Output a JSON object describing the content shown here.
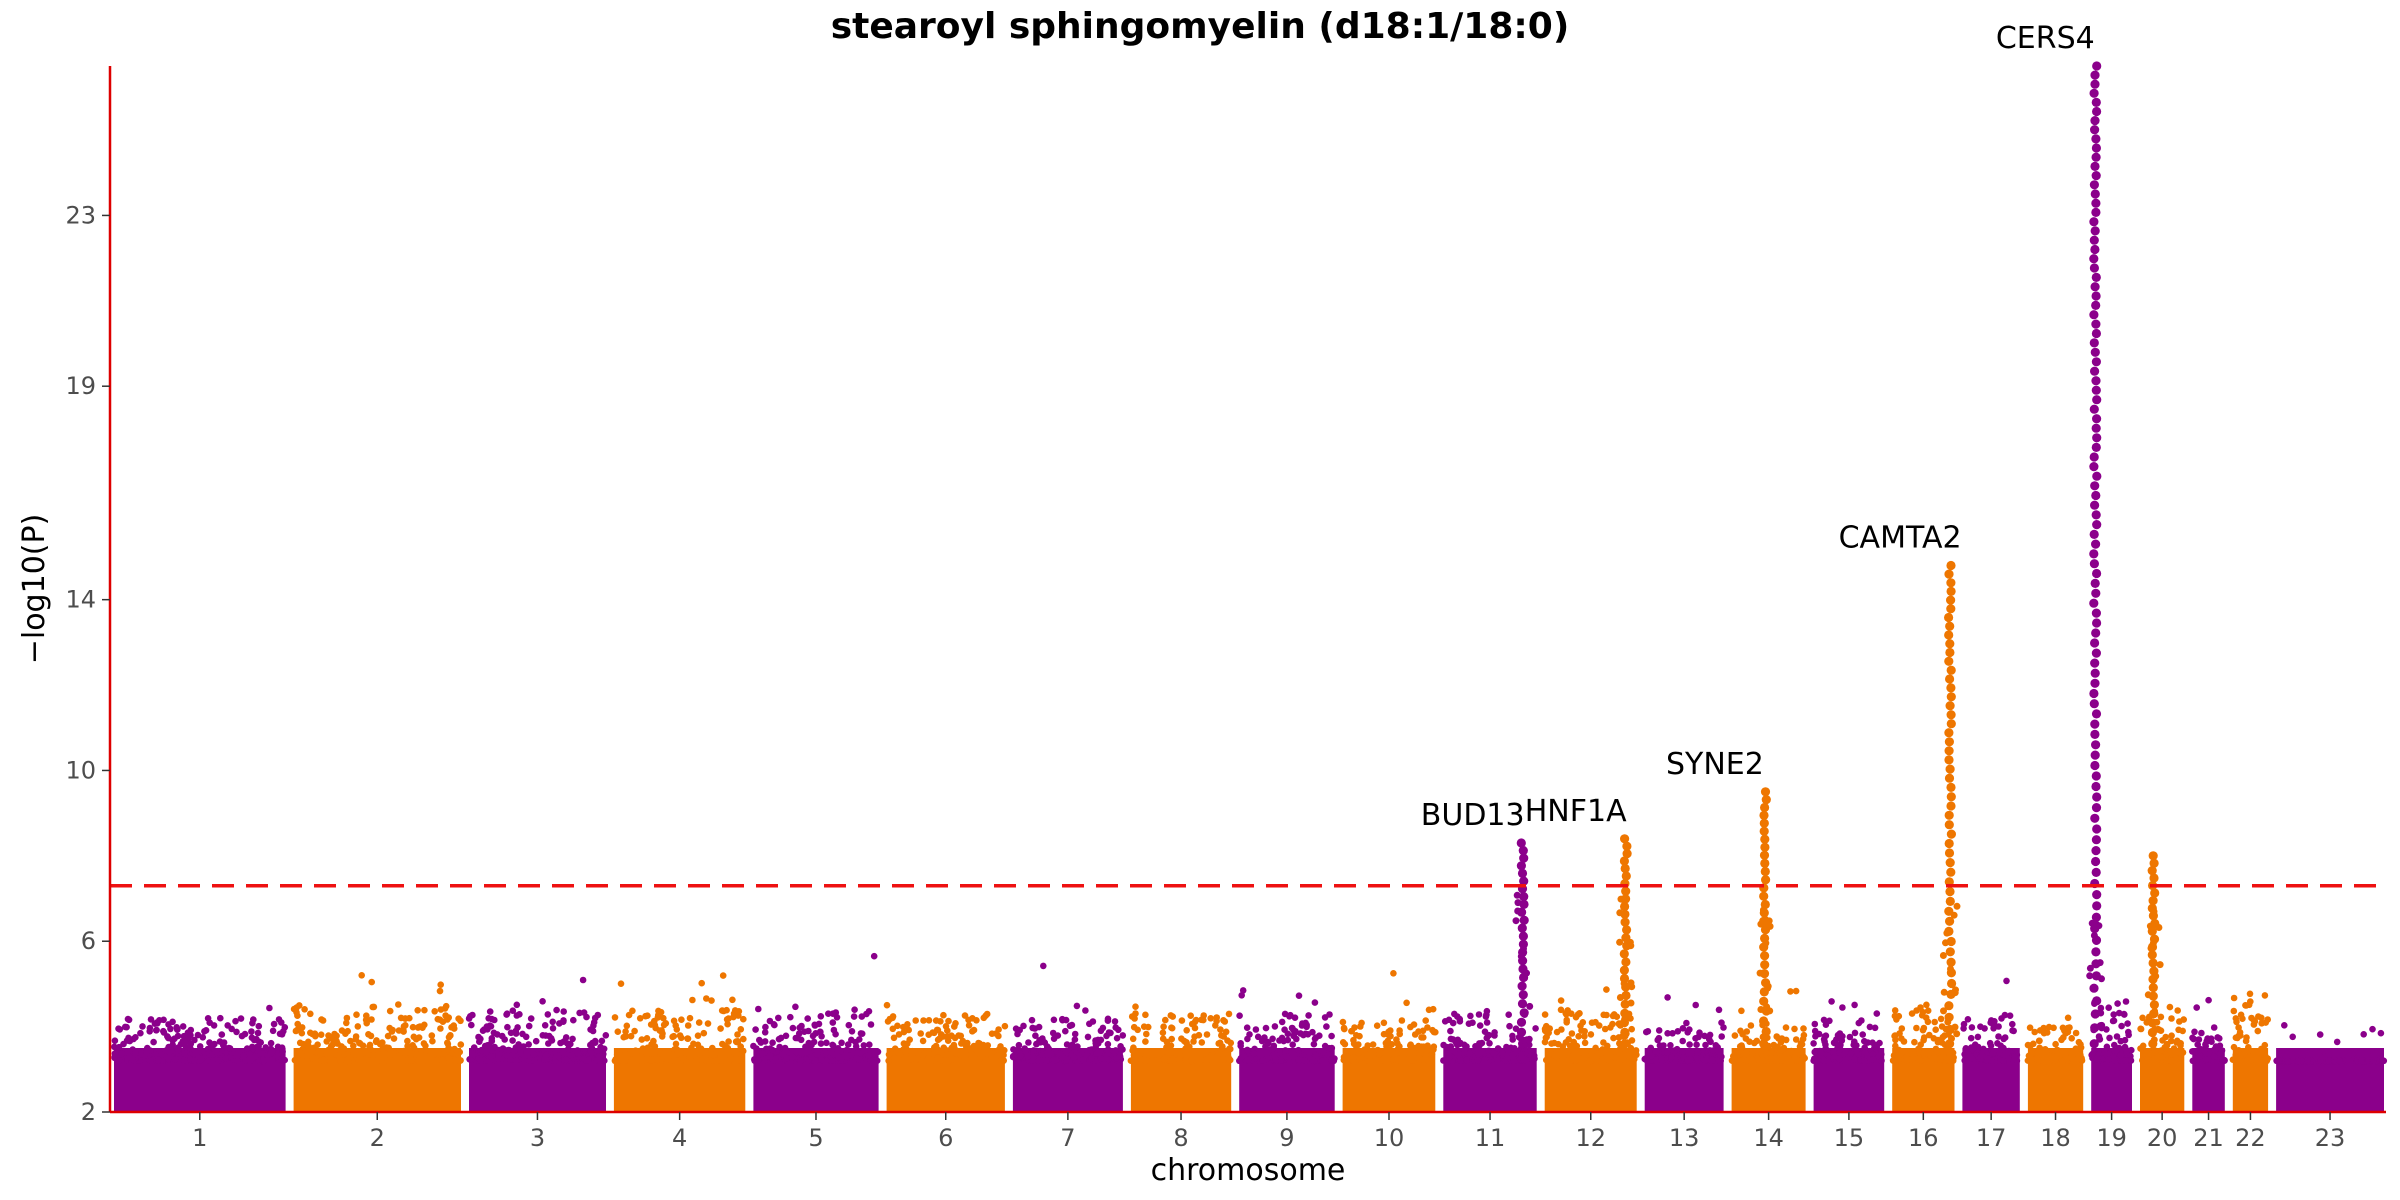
{
  "chart_data": {
    "type": "scatter",
    "subtype": "manhattan",
    "title": "stearoyl sphingomyelin (d18:1/18:0)",
    "xlabel": "chromosome",
    "ylabel": "−log10(P)",
    "ylim": [
      2,
      26.5
    ],
    "yticks": [
      "2",
      "6",
      "10",
      "14",
      "19",
      "23"
    ],
    "significance_threshold": 7.3,
    "colors": {
      "odd": "#8B008B",
      "even": "#EE7600",
      "axis": "#DD0000",
      "threshold": "#EE1111"
    },
    "chromosomes": [
      {
        "label": "1",
        "rel_len": 248,
        "baseline_max": 4.2
      },
      {
        "label": "2",
        "rel_len": 242,
        "baseline_max": 4.5
      },
      {
        "label": "3",
        "rel_len": 198,
        "baseline_max": 4.4
      },
      {
        "label": "4",
        "rel_len": 190,
        "baseline_max": 4.4
      },
      {
        "label": "5",
        "rel_len": 181,
        "baseline_max": 4.5
      },
      {
        "label": "6",
        "rel_len": 171,
        "baseline_max": 4.3
      },
      {
        "label": "7",
        "rel_len": 159,
        "baseline_max": 4.2
      },
      {
        "label": "8",
        "rel_len": 145,
        "baseline_max": 4.3
      },
      {
        "label": "9",
        "rel_len": 138,
        "baseline_max": 4.3
      },
      {
        "label": "10",
        "rel_len": 134,
        "baseline_max": 4.2
      },
      {
        "label": "11",
        "rel_len": 135,
        "baseline_max": 4.3
      },
      {
        "label": "12",
        "rel_len": 133,
        "baseline_max": 4.4
      },
      {
        "label": "13",
        "rel_len": 114,
        "baseline_max": 4.0
      },
      {
        "label": "14",
        "rel_len": 107,
        "baseline_max": 4.1
      },
      {
        "label": "15",
        "rel_len": 102,
        "baseline_max": 4.2
      },
      {
        "label": "16",
        "rel_len": 90,
        "baseline_max": 4.6
      },
      {
        "label": "17",
        "rel_len": 83,
        "baseline_max": 4.3
      },
      {
        "label": "18",
        "rel_len": 80,
        "baseline_max": 4.0
      },
      {
        "label": "19",
        "rel_len": 59,
        "baseline_max": 4.6
      },
      {
        "label": "20",
        "rel_len": 64,
        "baseline_max": 4.5
      },
      {
        "label": "21",
        "rel_len": 47,
        "baseline_max": 4.0
      },
      {
        "label": "22",
        "rel_len": 51,
        "baseline_max": 4.8
      },
      {
        "label": "23",
        "rel_len": 156,
        "baseline_max": 3.2
      }
    ],
    "peaks": [
      {
        "chrom": "11",
        "pos": 0.85,
        "top": 8.3,
        "label": "BUD13"
      },
      {
        "chrom": "12",
        "pos": 0.88,
        "top": 8.4,
        "label": "HNF1A"
      },
      {
        "chrom": "14",
        "pos": 0.45,
        "top": 9.5,
        "label": "SYNE2"
      },
      {
        "chrom": "16",
        "pos": 0.93,
        "top": 14.8,
        "label": "CAMTA2"
      },
      {
        "chrom": "19",
        "pos": 0.1,
        "top": 26.5,
        "label": "CERS4"
      },
      {
        "chrom": "20",
        "pos": 0.3,
        "top": 8.0,
        "label": ""
      }
    ]
  }
}
